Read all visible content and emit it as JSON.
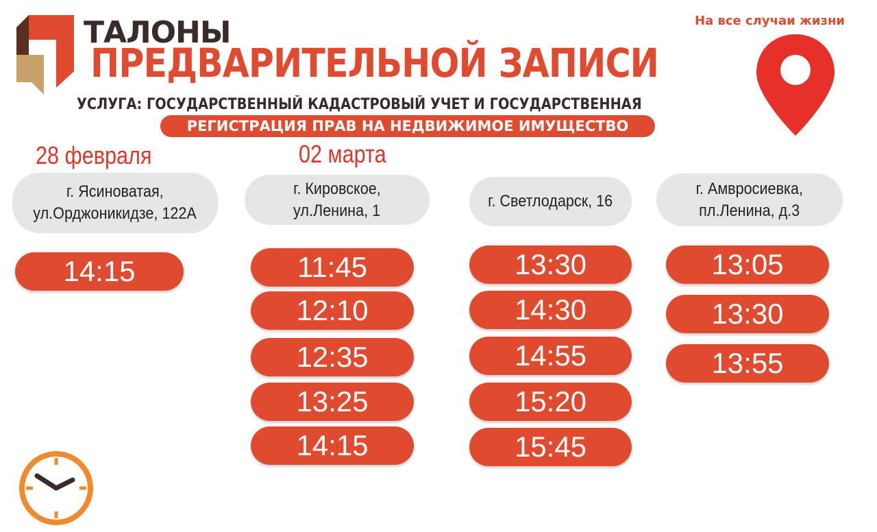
{
  "header": {
    "logo_word": "ТАЛОНЫ",
    "title": "ПРЕДВАРИТЕЛЬНОЙ ЗАПИСИ",
    "slogan": "На все случаи жизни"
  },
  "service": {
    "line1": "УСЛУГА: ГОСУДАРСТВЕННЫЙ КАДАСТРОВЫЙ УЧЕТ И ГОСУДАРСТВЕННАЯ",
    "line2": "РЕГИСТРАЦИЯ ПРАВ НА НЕДВИЖИМОЕ ИМУЩЕСТВО"
  },
  "dates": [
    "28 февраля",
    "02 марта"
  ],
  "columns": [
    {
      "address": [
        "г. Ясиноватая,",
        "ул.Орджоникидзе, 122А"
      ],
      "times": [
        "14:15"
      ]
    },
    {
      "address": [
        "г. Кировское,",
        "ул.Ленина, 1"
      ],
      "times": [
        "11:45",
        "12:10",
        "12:35",
        "13:25",
        "14:15"
      ]
    },
    {
      "address": [
        "г. Светлодарск, 16"
      ],
      "times": [
        "13:30",
        "14:30",
        "14:55",
        "15:20",
        "15:45"
      ]
    },
    {
      "address": [
        "г. Амвросиевка,",
        "пл.Ленина, д.3"
      ],
      "times": [
        "13:05",
        "13:30",
        "13:55"
      ]
    }
  ]
}
